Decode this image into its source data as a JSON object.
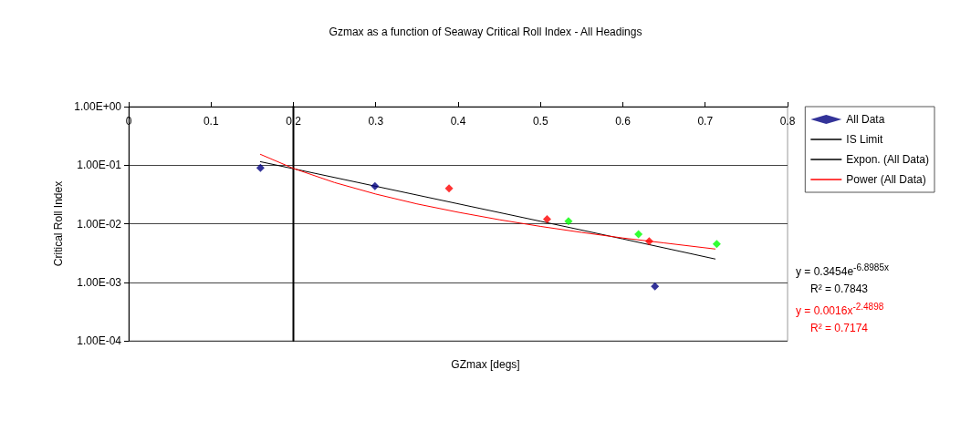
{
  "chart_data": {
    "type": "scatter",
    "title": "Gzmax as a function of Seaway Critical Roll Index - All Headings",
    "xlabel": "GZmax [degs]",
    "ylabel": "Critical Roll Index",
    "log": "y",
    "grid": "y",
    "legend": "right",
    "xlim": [
      0,
      0.8
    ],
    "xticks": [
      0,
      0.1,
      0.2,
      0.3,
      0.4,
      0.5,
      0.6,
      0.7,
      0.8
    ],
    "ylim": [
      0.0001,
      1
    ],
    "yticks": [
      {
        "value": 1,
        "label": "1.00E+00"
      },
      {
        "value": 0.1,
        "label": "1.00E-01"
      },
      {
        "value": 0.01,
        "label": "1.00E-02"
      },
      {
        "value": 0.001,
        "label": "1.00E-03"
      },
      {
        "value": 0.0001,
        "label": "1.00E-04"
      }
    ],
    "series": [
      {
        "name": "All Data",
        "marker": "diamond",
        "color": "#000080",
        "x": [
          0.16,
          0.299,
          0.389,
          0.508,
          0.534,
          0.619,
          0.632,
          0.639,
          0.714
        ],
        "values": [
          0.09,
          0.044,
          0.04,
          0.012,
          0.011,
          0.0066,
          0.005,
          0.00085,
          0.0045
        ],
        "colors": [
          "#000080",
          "#000080",
          "#ff0000",
          "#ff0000",
          "#00ff00",
          "#00ff00",
          "#ff0000",
          "#000080",
          "#00ff00"
        ]
      },
      {
        "name": "IS Limit",
        "type": "line",
        "marker": "none",
        "color": "#000000",
        "x": [
          0.2,
          0.2
        ],
        "values": [
          0.0001,
          1
        ]
      },
      {
        "name": "Expon. (All Data)",
        "type": "line",
        "marker": "none",
        "color": "#000000",
        "x": [
          0.16,
          0.3,
          0.4,
          0.5,
          0.6,
          0.712
        ],
        "values": [
          0.1145,
          0.0436,
          0.0219,
          0.011,
          0.0055,
          0.0025
        ]
      },
      {
        "name": "Power (All Data)",
        "type": "line",
        "marker": "none",
        "color": "#ff0000",
        "x": [
          0.16,
          0.2,
          0.25,
          0.3,
          0.35,
          0.4,
          0.45,
          0.5,
          0.55,
          0.6,
          0.65,
          0.712
        ],
        "values": [
          0.153,
          0.088,
          0.0505,
          0.0321,
          0.0218,
          0.0157,
          0.0117,
          0.009,
          0.0071,
          0.0057,
          0.0047,
          0.0037
        ]
      }
    ],
    "annotations": [
      "y = 0.3454e$^{-6.8985x}$",
      "R² = 0.7843",
      "y = 0.0016x$^{-2.4898}$",
      "R² = 0.7174"
    ]
  }
}
